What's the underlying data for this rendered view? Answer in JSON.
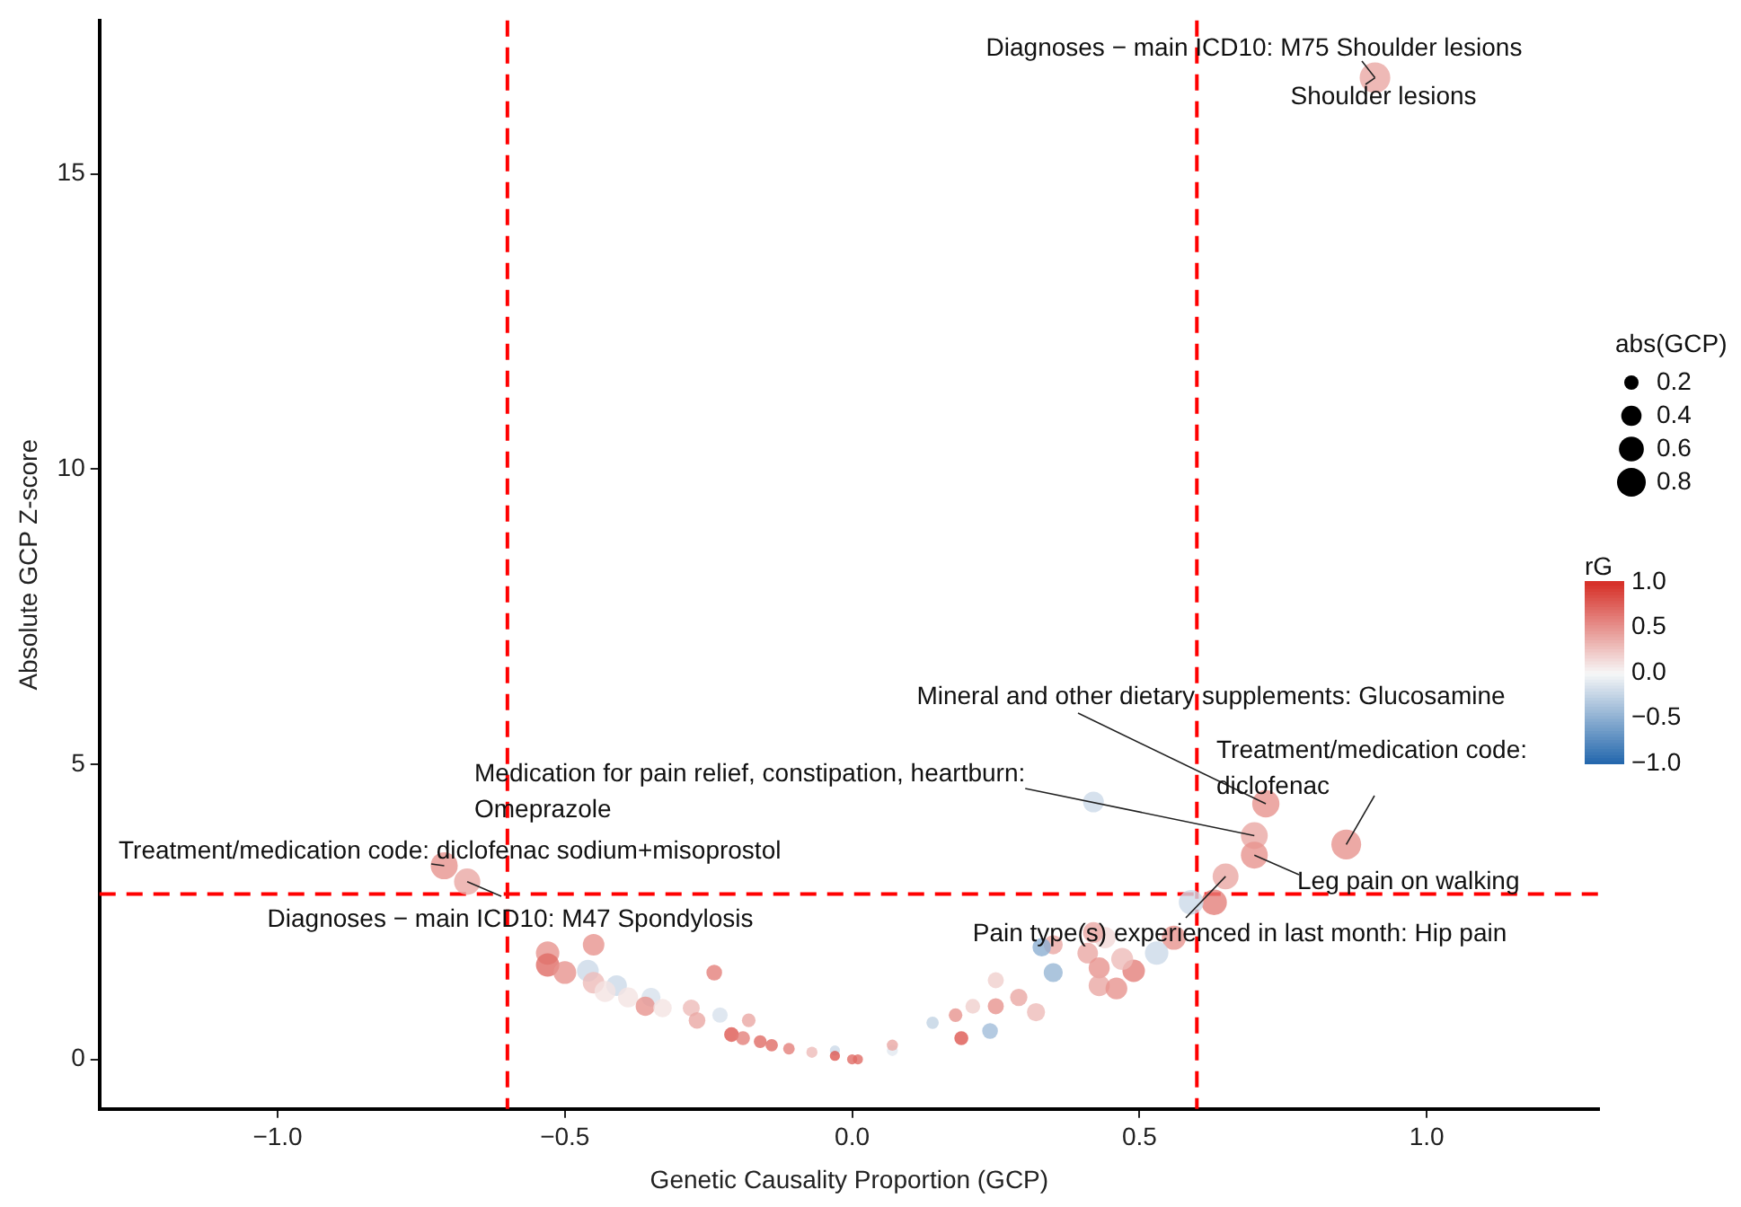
{
  "chart_data": {
    "type": "bubble",
    "xlabel": "Genetic Causality Proportion (GCP)",
    "ylabel": "Absolute GCP Z-score",
    "legend_title": "abs(GCP)",
    "clabel": "rG",
    "xlim": [
      -1.31,
      1.3
    ],
    "ylim": [
      -0.84,
      17.6
    ],
    "xticks": [
      {
        "value": -1,
        "label": "−1.0"
      },
      {
        "value": -0.5,
        "label": "−0.5"
      },
      {
        "value": 0,
        "label": "0.0"
      },
      {
        "value": 0.5,
        "label": "0.5"
      },
      {
        "value": 1,
        "label": "1.0"
      }
    ],
    "yticks": [
      0,
      5,
      10,
      15
    ],
    "grid": false,
    "size_legend": [
      0.2,
      0.4,
      0.6,
      0.8
    ],
    "clim": [
      -1,
      1
    ],
    "cticks": [
      {
        "value": -1,
        "label": "−1.0"
      },
      {
        "value": -0.5,
        "label": "−0.5"
      },
      {
        "value": 0,
        "label": "0.0"
      },
      {
        "value": 0.5,
        "label": "0.5"
      },
      {
        "value": 1,
        "label": "1.0"
      }
    ],
    "ref_lines": [
      {
        "axis": "x",
        "value": -0.6,
        "color": "#ff0000",
        "line_style": "dashed"
      },
      {
        "axis": "x",
        "value": 0.6,
        "color": "#ff0000",
        "line_style": "dashed"
      },
      {
        "axis": "y",
        "value": 2.8,
        "color": "#ff0000",
        "line_style": "dashed"
      }
    ],
    "x": [
      0.91,
      0.72,
      0.86,
      0.7,
      0.7,
      0.65,
      -0.71,
      -0.67,
      0.42,
      0.63,
      0.59,
      0.56,
      0.53,
      0.49,
      0.47,
      0.44,
      0.42,
      0.41,
      0.43,
      0.43,
      0.46,
      0.35,
      0.33,
      0.35,
      0.25,
      0.29,
      0.32,
      0.25,
      0.21,
      0.18,
      0.19,
      0.24,
      0.14,
      0.07,
      0.07,
      0.01,
      -0.45,
      -0.53,
      -0.53,
      -0.5,
      -0.46,
      -0.45,
      -0.41,
      -0.43,
      -0.39,
      -0.35,
      -0.36,
      -0.33,
      -0.24,
      -0.28,
      -0.27,
      -0.23,
      -0.18,
      -0.21,
      -0.19,
      -0.16,
      -0.14,
      -0.11,
      -0.07,
      -0.03,
      -0.03,
      0.0
    ],
    "values": [
      16.63,
      4.33,
      3.64,
      3.79,
      3.46,
      3.1,
      3.28,
      3.01,
      4.36,
      2.66,
      2.66,
      2.06,
      1.8,
      1.5,
      1.7,
      2.06,
      2.15,
      1.8,
      1.55,
      1.25,
      1.2,
      1.94,
      1.9,
      1.47,
      1.34,
      1.05,
      0.8,
      0.9,
      0.9,
      0.75,
      0.36,
      0.48,
      0.62,
      0.15,
      0.24,
      0.0,
      1.94,
      1.8,
      1.6,
      1.47,
      1.5,
      1.3,
      1.25,
      1.15,
      1.05,
      1.05,
      0.9,
      0.87,
      1.47,
      0.87,
      0.66,
      0.75,
      0.66,
      0.42,
      0.36,
      0.3,
      0.24,
      0.18,
      0.12,
      0.15,
      0.06,
      0.0
    ],
    "sizes": [
      0.91,
      0.72,
      0.86,
      0.7,
      0.7,
      0.65,
      0.71,
      0.67,
      0.42,
      0.63,
      0.59,
      0.56,
      0.53,
      0.49,
      0.47,
      0.44,
      0.42,
      0.41,
      0.43,
      0.43,
      0.46,
      0.35,
      0.33,
      0.35,
      0.25,
      0.29,
      0.32,
      0.25,
      0.21,
      0.18,
      0.19,
      0.24,
      0.15,
      0.12,
      0.12,
      0.1,
      0.45,
      0.53,
      0.53,
      0.5,
      0.46,
      0.45,
      0.41,
      0.43,
      0.39,
      0.35,
      0.36,
      0.33,
      0.24,
      0.28,
      0.27,
      0.23,
      0.18,
      0.21,
      0.19,
      0.16,
      0.15,
      0.13,
      0.12,
      0.1,
      0.1,
      0.1
    ],
    "cvalues": [
      0.4,
      0.5,
      0.5,
      0.4,
      0.5,
      0.4,
      0.5,
      0.4,
      -0.2,
      0.6,
      -0.2,
      0.5,
      -0.2,
      0.6,
      0.3,
      0.15,
      0.4,
      0.4,
      0.5,
      0.4,
      0.5,
      0.4,
      -0.5,
      -0.45,
      0.2,
      0.4,
      0.3,
      0.5,
      0.2,
      0.5,
      0.8,
      -0.4,
      -0.25,
      -0.1,
      0.4,
      0.7,
      0.5,
      0.5,
      0.7,
      0.5,
      -0.2,
      0.3,
      -0.2,
      0.1,
      0.1,
      -0.15,
      0.5,
      0.1,
      0.6,
      0.3,
      0.4,
      -0.15,
      0.4,
      0.8,
      0.6,
      0.7,
      0.7,
      0.6,
      0.3,
      -0.2,
      0.8,
      0.7
    ],
    "annotations": [
      {
        "text": "Diagnoses − main ICD10: M75 Shoulder lesions",
        "x": 0.91,
        "y": 16.63
      },
      {
        "text": "Shoulder lesions",
        "x": 0.91,
        "y": 16.63
      },
      {
        "text": "Mineral and other dietary supplements: Glucosamine",
        "x": 0.72,
        "y": 4.33
      },
      {
        "text": "Treatment/medication code: diclofenac",
        "x": 0.86,
        "y": 3.64
      },
      {
        "text": "Medication for pain relief, constipation, heartburn: Omeprazole",
        "x": 0.7,
        "y": 3.79
      },
      {
        "text": "Treatment/medication code: diclofenac sodium+misoprostol",
        "x": -0.71,
        "y": 3.28
      },
      {
        "text": "Diagnoses − main ICD10: M47 Spondylosis",
        "x": -0.67,
        "y": 3.01
      },
      {
        "text": "Leg pain on walking",
        "x": 0.7,
        "y": 3.46
      },
      {
        "text": "Pain type(s) experienced in last month: Hip pain",
        "x": 0.65,
        "y": 3.1
      }
    ]
  }
}
